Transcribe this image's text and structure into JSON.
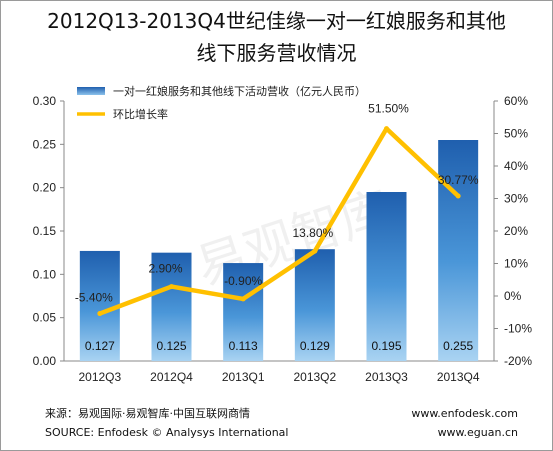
{
  "chart_data": {
    "type": "bar",
    "title_line1": "2012Q13-2013Q4世纪佳缘一对一红娘服务和其他",
    "title_line2": "线下服务营收情况",
    "categories": [
      "2012Q3",
      "2012Q4",
      "2013Q1",
      "2013Q2",
      "2013Q3",
      "2013Q4"
    ],
    "series": [
      {
        "name": "一对一红娘服务和其他线下活动营收（亿元人民币）",
        "type": "bar",
        "axis": "left",
        "values": [
          0.127,
          0.125,
          0.113,
          0.129,
          0.195,
          0.255
        ],
        "labels": [
          "0.127",
          "0.125",
          "0.113",
          "0.129",
          "0.195",
          "0.255"
        ],
        "color": "#2f78c4"
      },
      {
        "name": "环比增长率",
        "type": "line",
        "axis": "right",
        "values": [
          -5.4,
          2.9,
          -0.9,
          13.8,
          51.5,
          30.77
        ],
        "labels": [
          "-5.40%",
          "2.90%",
          "-0.90%",
          "13.80%",
          "51.50%",
          "30.77%"
        ],
        "color": "#ffc000"
      }
    ],
    "y_left": {
      "min": 0,
      "max": 0.3,
      "ticks": [
        "0.00",
        "0.05",
        "0.10",
        "0.15",
        "0.20",
        "0.25",
        "0.30"
      ]
    },
    "y_right": {
      "min": -20,
      "max": 60,
      "ticks": [
        "-20%",
        "-10%",
        "0%",
        "10%",
        "20%",
        "30%",
        "40%",
        "50%",
        "60%"
      ]
    },
    "legend_position": "top-left",
    "grid": false
  },
  "watermark": "易观智库",
  "footer": {
    "source_cn": "来源：易观国际·易观智库·中国互联网商情",
    "source_en": "SOURCE: Enfodesk © Analysys International",
    "site1": "www.enfodesk.com",
    "site2": "www.eguan.cn"
  }
}
